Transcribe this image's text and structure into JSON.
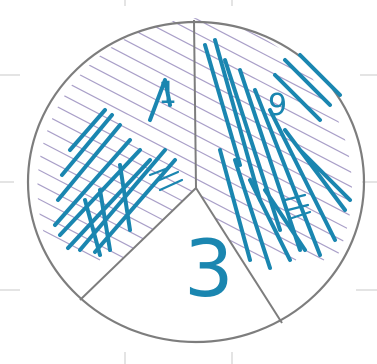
{
  "diagram": {
    "labels": {
      "top_left_mark": "1",
      "top_right_mark": "9",
      "bottom_number": "3"
    },
    "colors": {
      "ink": "#1a86b0",
      "outline": "#7d7d7d",
      "hatch": "#a99fc8",
      "grid": "#c9c9c9"
    }
  }
}
